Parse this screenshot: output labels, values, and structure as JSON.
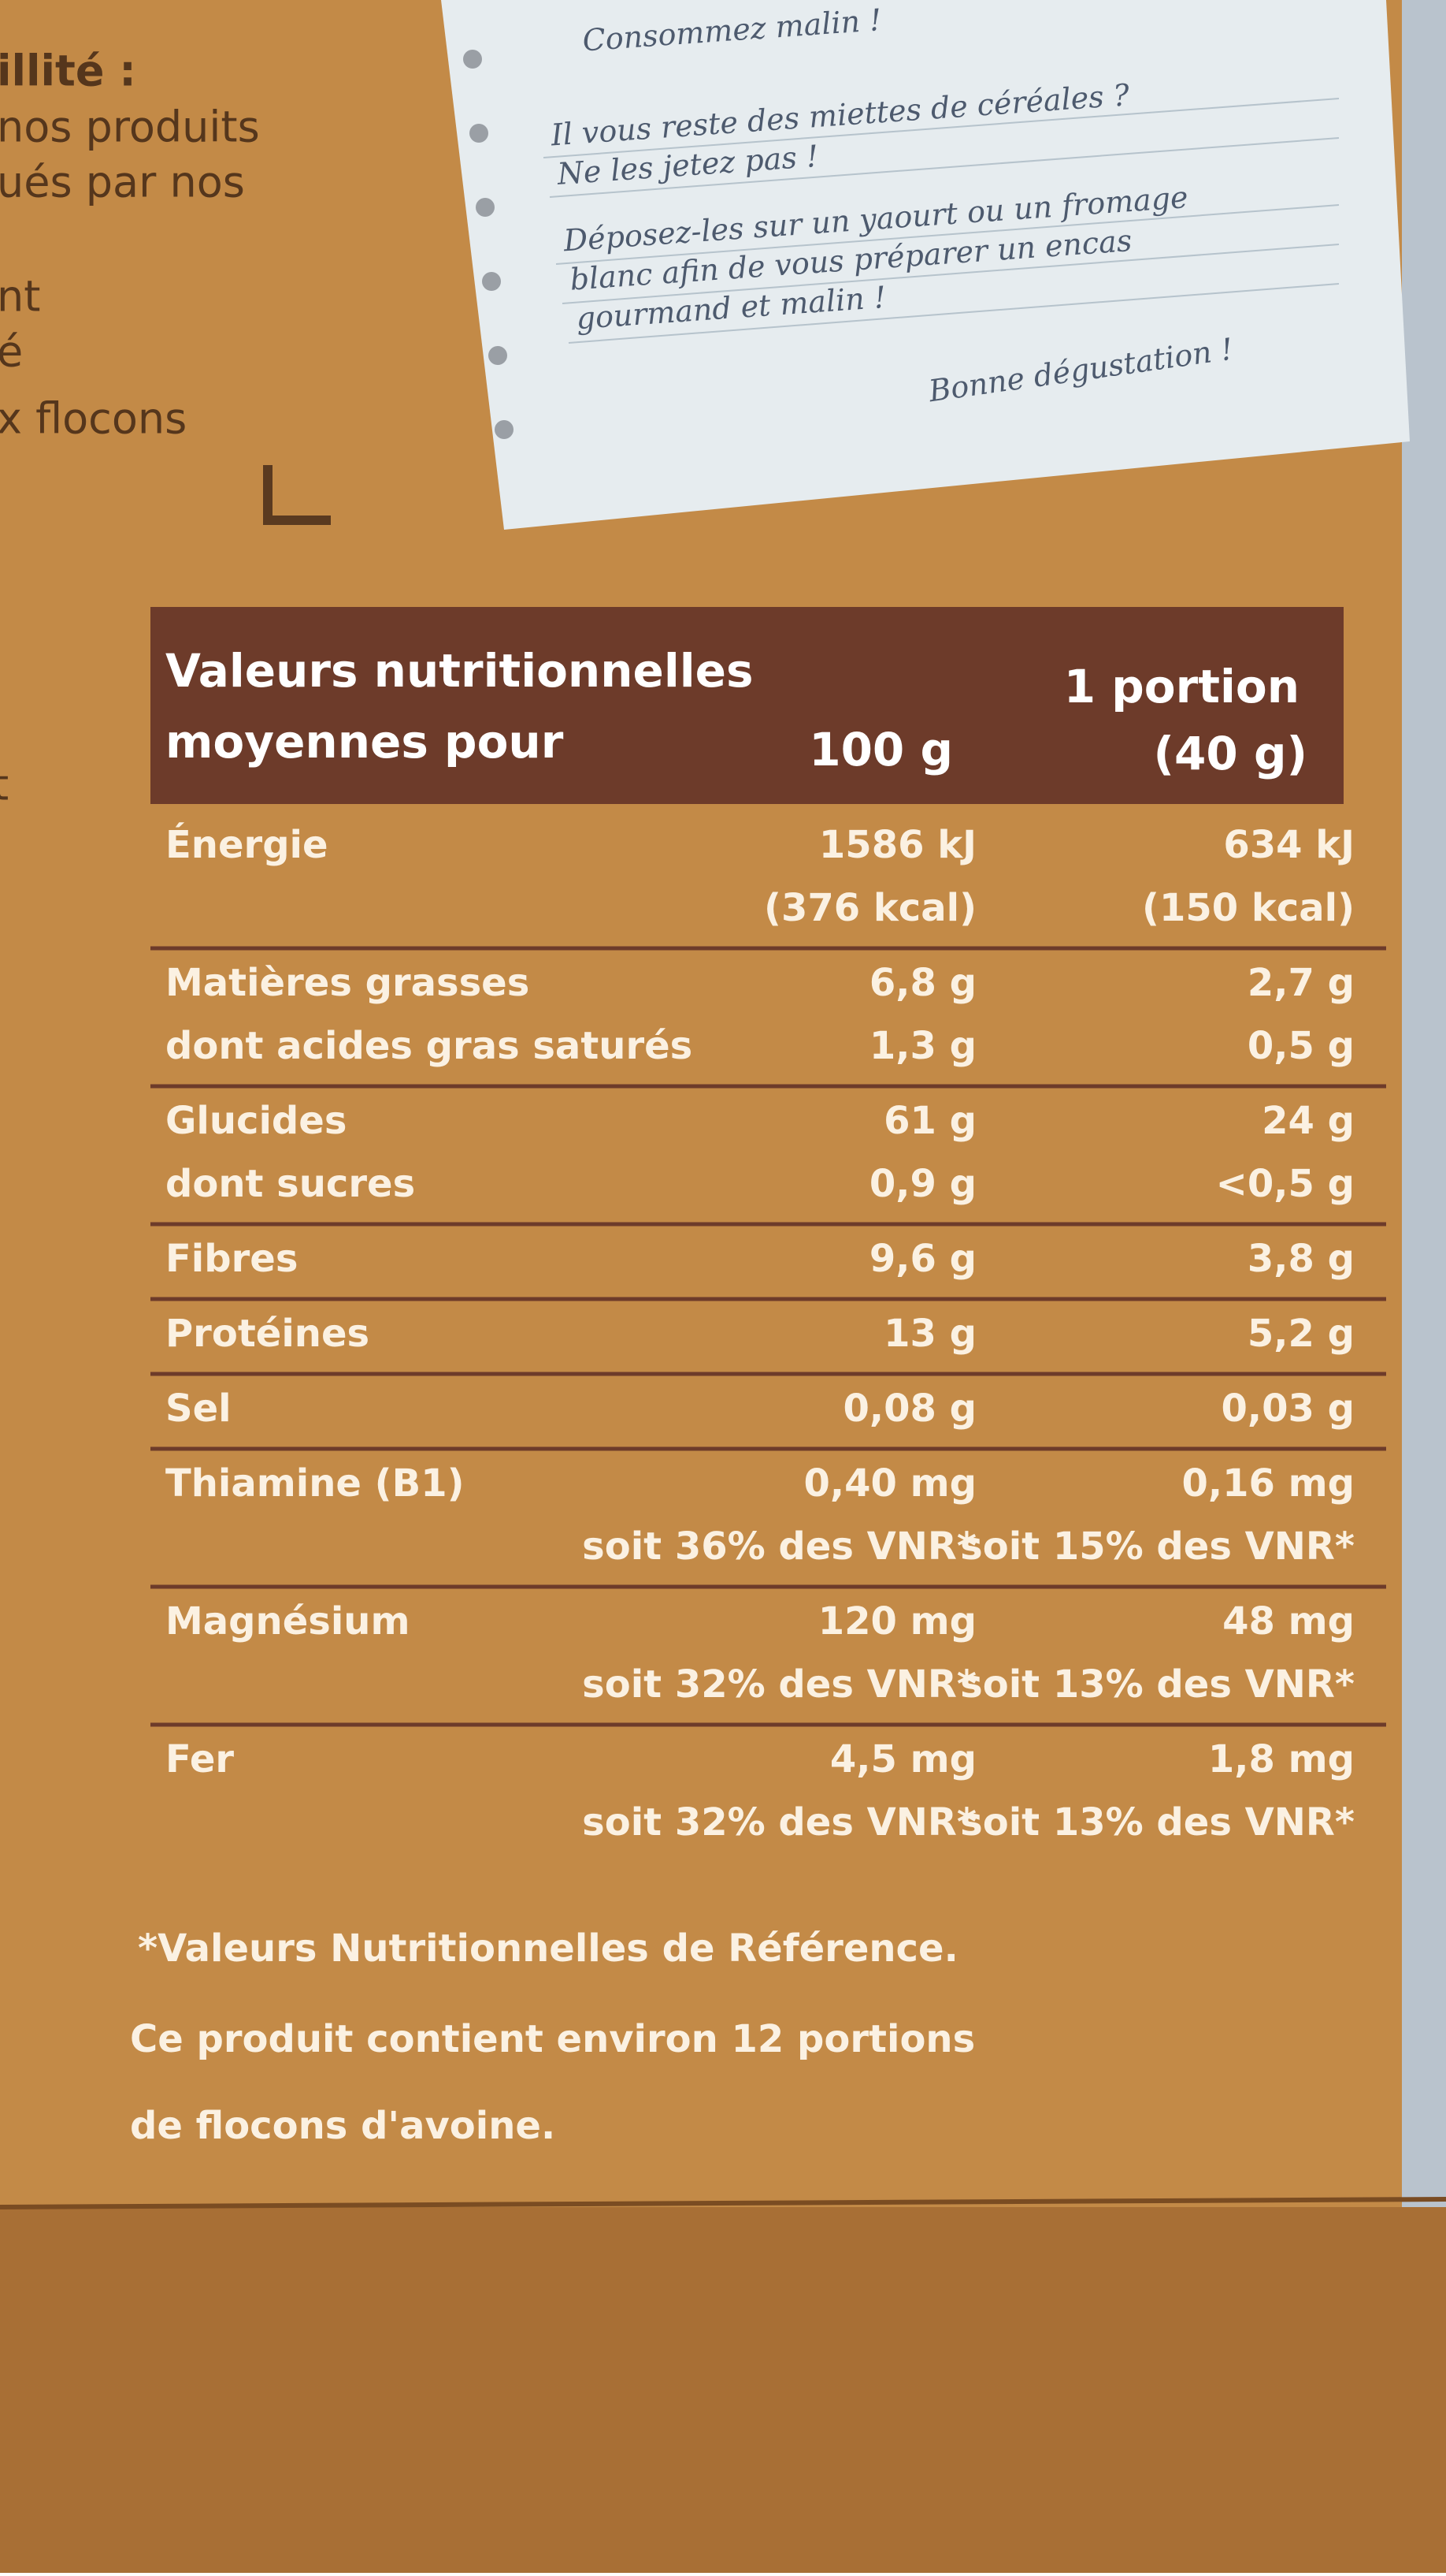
{
  "left_text": [
    "illité :",
    "nos produits",
    "ués par nos",
    "nt",
    "é",
    "x flocons",
    "t"
  ],
  "note": {
    "title": "Consommez malin !",
    "lines": [
      "Il vous reste des miettes de céréales ?",
      "Ne les jetez pas !",
      "Déposez-les sur un yaourt ou un fromage",
      "blanc afin de vous préparer un encas",
      "gourmand et malin !"
    ],
    "closing": "Bonne dégustation !"
  },
  "table": {
    "header": {
      "label": [
        "Valeurs nutritionnelles",
        "moyennes pour"
      ],
      "per100": "100 g",
      "portion": [
        "1 portion",
        "(40 g)"
      ]
    },
    "groups": [
      [
        {
          "label": "Énergie",
          "per100": [
            "1586 kJ",
            "(376 kcal)"
          ],
          "portion": [
            "634 kJ",
            "(150 kcal)"
          ]
        }
      ],
      [
        {
          "label": "Matières grasses",
          "per100": [
            "6,8 g"
          ],
          "portion": [
            "2,7 g"
          ]
        },
        {
          "label": "dont acides gras saturés",
          "per100": [
            "1,3 g"
          ],
          "portion": [
            "0,5 g"
          ]
        }
      ],
      [
        {
          "label": "Glucides",
          "per100": [
            "61 g"
          ],
          "portion": [
            "24 g"
          ]
        },
        {
          "label": "dont sucres",
          "per100": [
            "0,9 g"
          ],
          "portion": [
            "<0,5 g"
          ]
        }
      ],
      [
        {
          "label": "Fibres",
          "per100": [
            "9,6 g"
          ],
          "portion": [
            "3,8 g"
          ]
        }
      ],
      [
        {
          "label": "Protéines",
          "per100": [
            "13 g"
          ],
          "portion": [
            "5,2 g"
          ]
        }
      ],
      [
        {
          "label": "Sel",
          "per100": [
            "0,08 g"
          ],
          "portion": [
            "0,03 g"
          ]
        }
      ],
      [
        {
          "label": "Thiamine (B1)",
          "per100": [
            "0,40 mg",
            "soit 36% des VNR*"
          ],
          "portion": [
            "0,16 mg",
            "soit 15% des VNR*"
          ]
        }
      ],
      [
        {
          "label": "Magnésium",
          "per100": [
            "120 mg",
            "soit 32% des VNR*"
          ],
          "portion": [
            "48 mg",
            "soit 13% des VNR*"
          ]
        }
      ],
      [
        {
          "label": "Fer",
          "per100": [
            "4,5 mg",
            "soit 32% des VNR*"
          ],
          "portion": [
            "1,8 mg",
            "soit 13% des VNR*"
          ]
        }
      ]
    ]
  },
  "footnote": [
    "*Valeurs Nutritionnelles de Référence.",
    "Ce produit contient environ 12 portions",
    "de flocons d'avoine."
  ]
}
